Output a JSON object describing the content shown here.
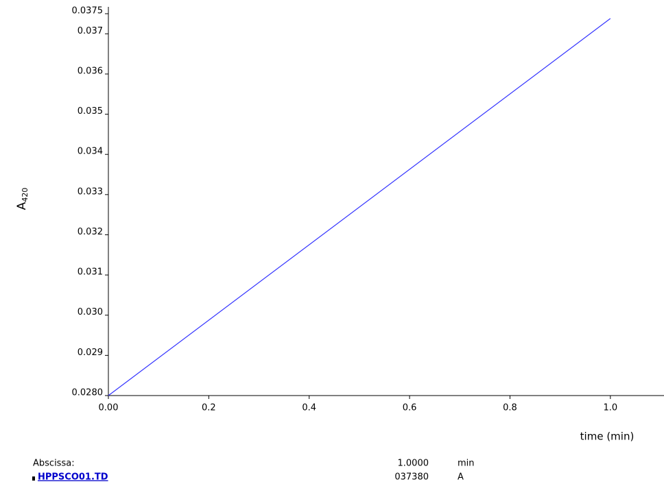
{
  "chart_data": {
    "type": "line",
    "x_label": "time (min)",
    "y_label": "A",
    "y_label_sub": "420",
    "x": [
      0,
      1.0
    ],
    "series": [
      {
        "name": "HPPSCO01.TD",
        "color": "#3333ff",
        "values": [
          0.028,
          0.03738
        ]
      }
    ],
    "xlim": [
      0,
      1.1
    ],
    "ylim": [
      0.028,
      0.0375
    ],
    "xticks": [
      {
        "value": 0,
        "label": "0.00"
      },
      0.2,
      0.4,
      0.6,
      0.8,
      {
        "value": 1,
        "label": "1.0"
      }
    ],
    "yticks": [
      {
        "value": 0.028,
        "label": "0.0280"
      },
      0.029,
      {
        "value": 0.03,
        "label": "0.030"
      },
      0.031,
      0.032,
      0.033,
      0.034,
      0.035,
      0.036,
      0.037,
      0.0375
    ],
    "footer": {
      "abscissa_label": "Abscissa:",
      "abscissa_value": "1.0000",
      "abscissa_unit": "min",
      "trace_name": "HPPSCO01.TD",
      "trace_value": "037380",
      "trace_unit": "A"
    }
  }
}
